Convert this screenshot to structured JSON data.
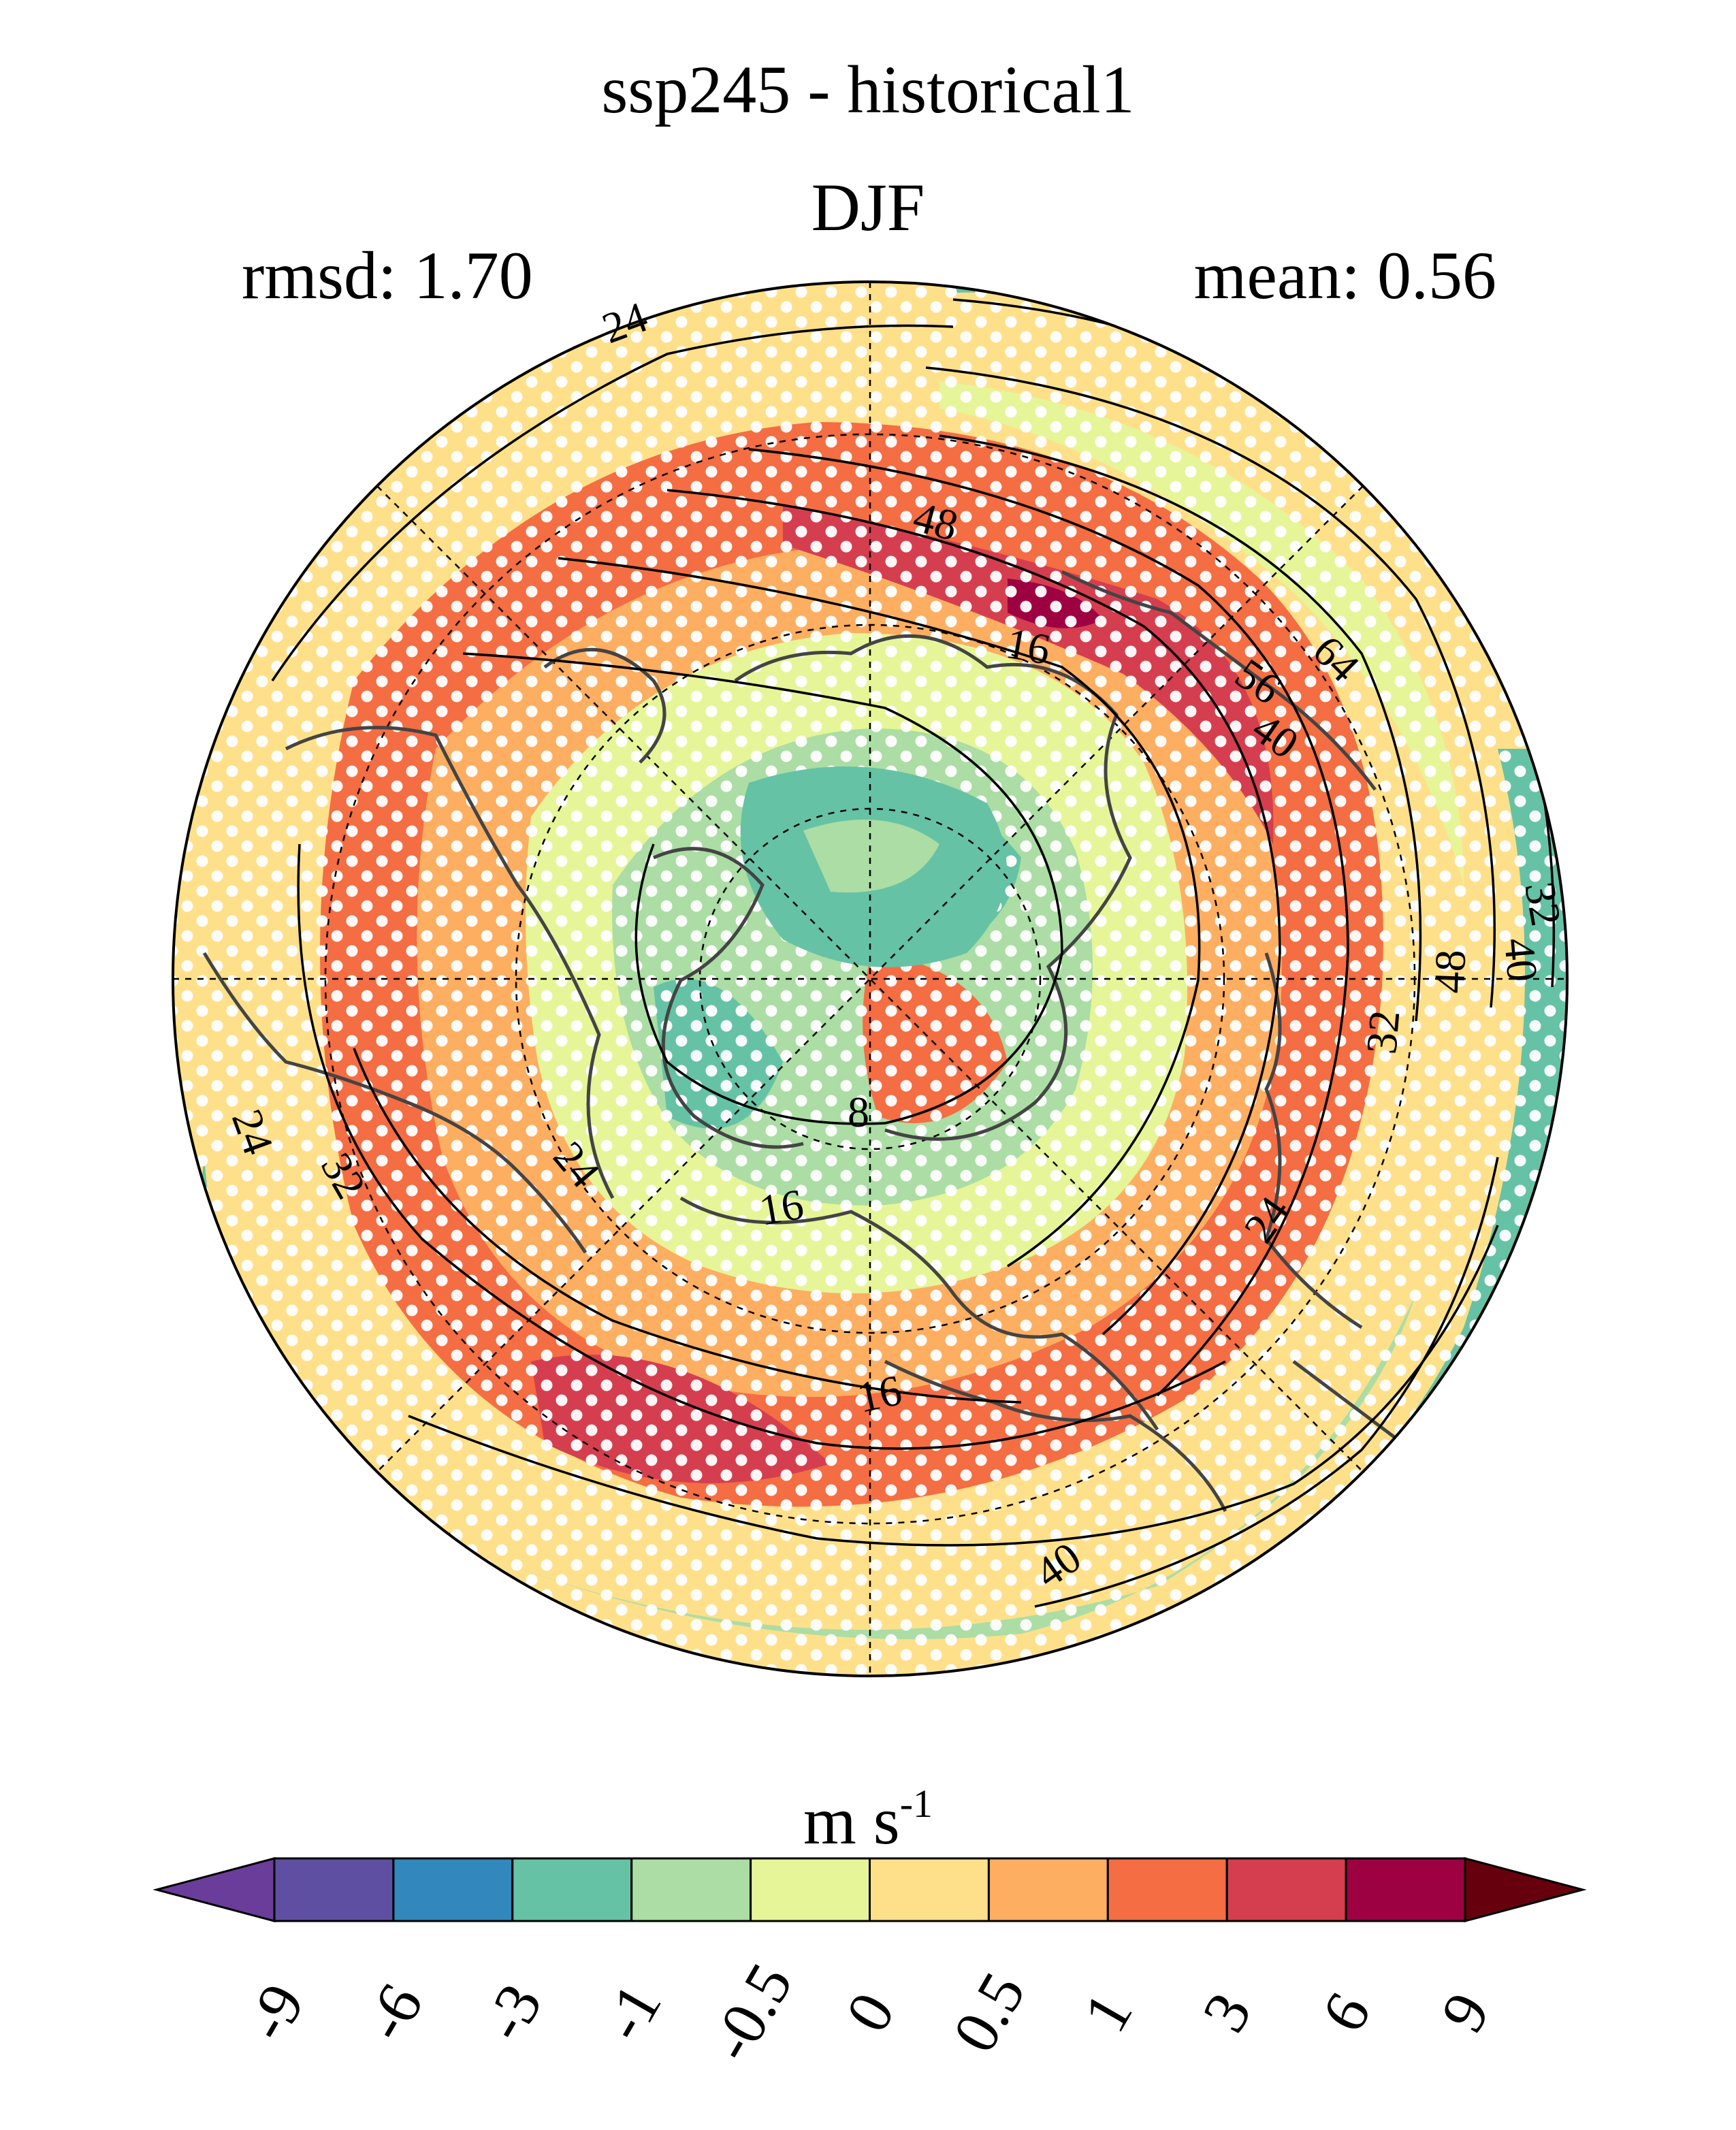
{
  "title": "ssp245 - historical1",
  "season": "DJF",
  "stats": {
    "rmsd": "rmsd: 1.70",
    "mean": "mean: 0.56"
  },
  "projection": "north-polar-stereographic",
  "contour_labels": [
    "24",
    "48",
    "16",
    "56",
    "64",
    "40",
    "32",
    "40",
    "48",
    "32",
    "24",
    "32",
    "24",
    "8",
    "16",
    "24",
    "16",
    "40"
  ],
  "colorbar": {
    "units_main": "m s",
    "units_exp": "-1",
    "ticks": [
      "-9",
      "-6",
      "-3",
      "-1",
      "-0.5",
      "0",
      "0.5",
      "1",
      "3",
      "6",
      "9"
    ],
    "colors": [
      "#5e4fa2",
      "#3288bd",
      "#66c2a5",
      "#abdda4",
      "#e6f598",
      "#fee08b",
      "#fdae61",
      "#f46d43",
      "#d53e4f",
      "#9e0142"
    ],
    "under_color": "#6a3d9a",
    "over_color": "#67000d"
  },
  "palette": {
    "ocean_dark_red": "#9e0142",
    "red": "#d53e4f",
    "orange_red": "#f46d43",
    "orange": "#fdae61",
    "yellow": "#fee08b",
    "lime": "#e6f598",
    "light_green": "#abdda4",
    "teal": "#66c2a5",
    "blue": "#3288bd",
    "coast": "#444444",
    "stipple": "#ffffff"
  }
}
